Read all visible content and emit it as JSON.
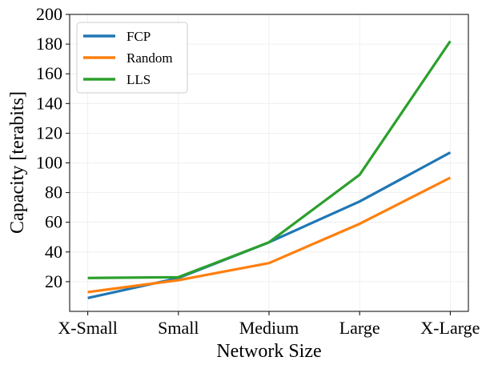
{
  "chart_data": {
    "type": "line",
    "title": "",
    "xlabel": "Network Size",
    "ylabel": "Capacity [terabits]",
    "categories": [
      "X-Small",
      "Small",
      "Medium",
      "Large",
      "X-Large"
    ],
    "ylim": [
      0,
      200
    ],
    "yticks": [
      20,
      40,
      60,
      80,
      100,
      120,
      140,
      160,
      180,
      200
    ],
    "grid": true,
    "legend_position": "upper-left",
    "series": [
      {
        "name": "FCP",
        "color": "#1f77b4",
        "values": [
          9,
          22.5,
          46.5,
          74,
          107
        ]
      },
      {
        "name": "Random",
        "color": "#ff7f0e",
        "values": [
          13,
          21,
          32.5,
          59,
          90
        ]
      },
      {
        "name": "LLS",
        "color": "#2ca02c",
        "values": [
          22.5,
          23,
          46.5,
          92,
          182
        ]
      }
    ]
  }
}
